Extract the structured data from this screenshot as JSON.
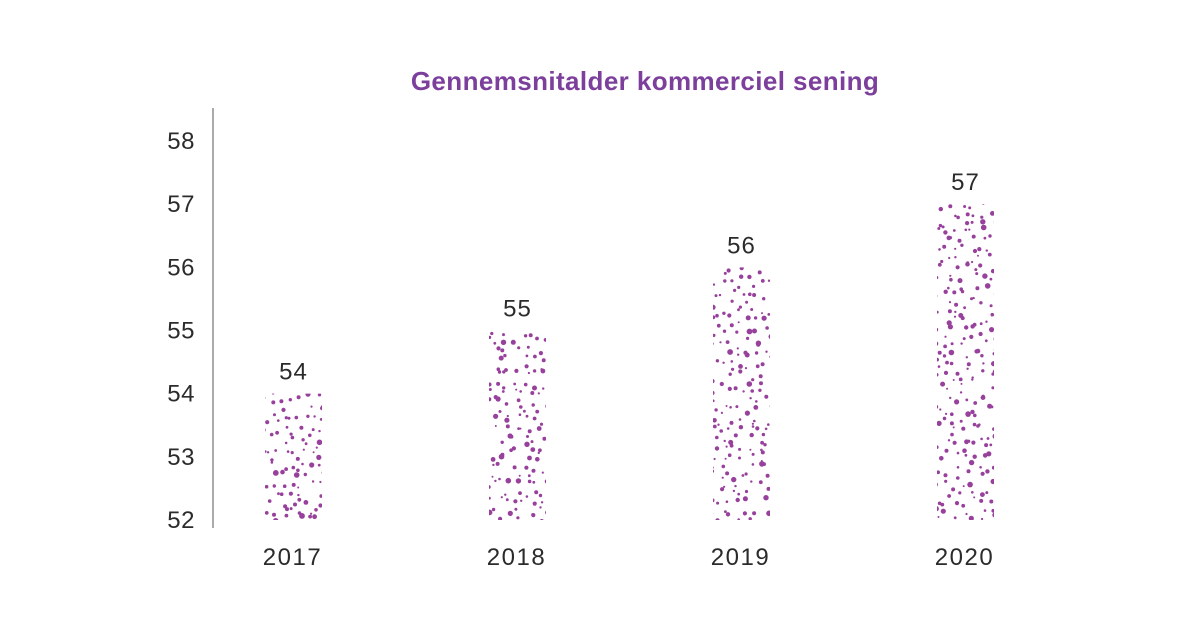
{
  "chart_data": {
    "type": "bar",
    "title": "Gennemsnitalder kommerciel sening",
    "categories": [
      "2017",
      "2018",
      "2019",
      "2020"
    ],
    "values": [
      54,
      55,
      56,
      57
    ],
    "value_labels": [
      "54",
      "55",
      "56",
      "57"
    ],
    "xlabel": "",
    "ylabel": "",
    "ylim": [
      52,
      58
    ],
    "yticks": [
      52,
      53,
      54,
      55,
      56,
      57,
      58
    ],
    "grid": "off",
    "legend": "none",
    "bar_fill_style": "random-dot-texture",
    "colors": {
      "title": "#7c3f9c",
      "dots": "#97409c",
      "axis": "#7c7c7c",
      "text": "#2b2b2b",
      "background": "#ffffff"
    }
  }
}
